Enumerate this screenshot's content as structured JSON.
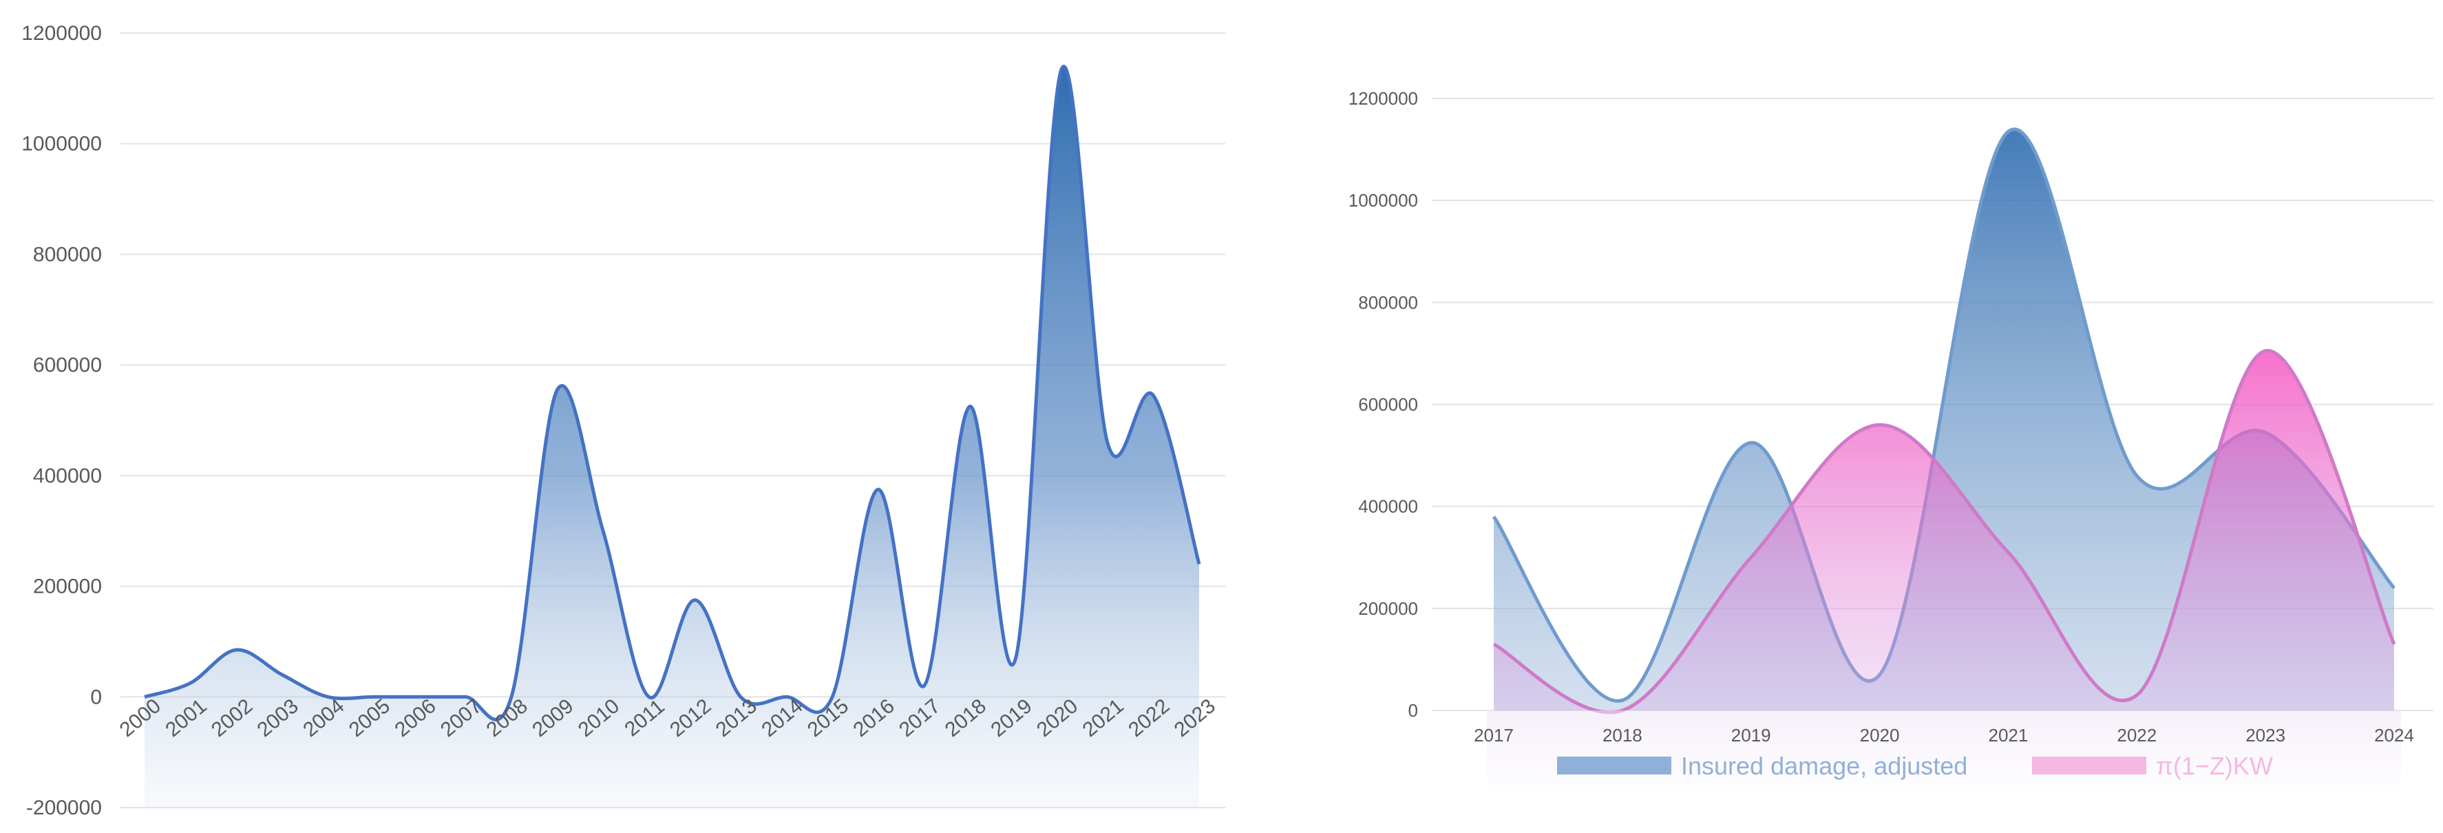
{
  "chart_data": [
    {
      "type": "area",
      "x": [
        "2000",
        "2001",
        "2002",
        "2003",
        "2004",
        "2005",
        "2006",
        "2007",
        "2008",
        "2009",
        "2010",
        "2011",
        "2012",
        "2013",
        "2014",
        "2015",
        "2016",
        "2017",
        "2018",
        "2019",
        "2020",
        "2021",
        "2022",
        "2023"
      ],
      "series": [
        {
          "values": [
            0,
            25000,
            85000,
            40000,
            0,
            0,
            0,
            0,
            0,
            555000,
            300000,
            0,
            175000,
            0,
            0,
            0,
            375000,
            20000,
            525000,
            70000,
            1135000,
            460000,
            545000,
            240000
          ],
          "color": "#4472c4"
        }
      ],
      "ylim": [
        -200000,
        1200000
      ],
      "yticks": [
        "-200000",
        "0",
        "200000",
        "400000",
        "600000",
        "800000",
        "1000000",
        "1200000"
      ],
      "grid": true,
      "legend": false
    },
    {
      "type": "area",
      "x": [
        "2017",
        "2018",
        "2019",
        "2020",
        "2021",
        "2022",
        "2023",
        "2024"
      ],
      "series": [
        {
          "name": "Insured damage, adjusted",
          "values": [
            380000,
            20000,
            525000,
            70000,
            1135000,
            460000,
            545000,
            240000
          ],
          "color": "#5b8ec4"
        },
        {
          "name": "π(1−Z)KW",
          "values": [
            130000,
            0,
            300000,
            560000,
            310000,
            30000,
            705000,
            130000
          ],
          "color": "#f06ac2"
        }
      ],
      "ylim": [
        0,
        1200000
      ],
      "yticks": [
        "0",
        "200000",
        "400000",
        "600000",
        "800000",
        "1000000",
        "1200000"
      ],
      "grid": true,
      "legend": "bottom"
    }
  ]
}
